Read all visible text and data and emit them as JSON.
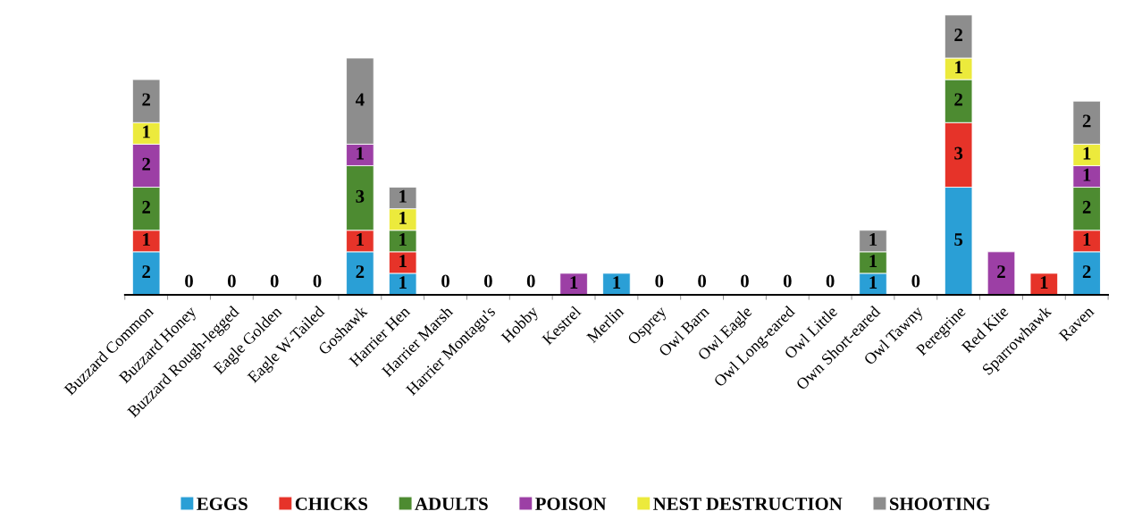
{
  "chart_data": {
    "type": "bar",
    "stacked": true,
    "data_labels": true,
    "legend": "bottom",
    "categories": [
      "Buzzard Common",
      "Buzzard Honey",
      "Buzzard Rough-legged",
      "Eagle Golden",
      "Eagle W-Tailed",
      "Goshawk",
      "Harrier Hen",
      "Harrier Marsh",
      "Harrier Montagu's",
      "Hobby",
      "Kestrel",
      "Merlin",
      "Osprey",
      "Owl Barn",
      "Owl Eagle",
      "Owl Long-eared",
      "Owl Little",
      "Own Short-eared",
      "Owl Tawny",
      "Peregrine",
      "Red Kite",
      "Sparrowhawk",
      "Raven"
    ],
    "series": [
      {
        "name": "EGGS",
        "color": "#2a9fd6",
        "values": [
          2,
          0,
          0,
          0,
          0,
          2,
          1,
          0,
          0,
          0,
          null,
          1,
          0,
          0,
          0,
          0,
          0,
          1,
          0,
          5,
          null,
          null,
          2
        ]
      },
      {
        "name": "CHICKS",
        "color": "#e63329",
        "values": [
          1,
          null,
          null,
          null,
          null,
          1,
          1,
          null,
          null,
          null,
          null,
          null,
          null,
          null,
          null,
          null,
          null,
          null,
          null,
          3,
          null,
          1,
          1
        ]
      },
      {
        "name": "ADULTS",
        "color": "#4d8b31",
        "values": [
          2,
          null,
          null,
          null,
          null,
          3,
          1,
          null,
          null,
          null,
          null,
          null,
          null,
          null,
          null,
          null,
          null,
          1,
          null,
          2,
          null,
          null,
          2
        ]
      },
      {
        "name": "POISON",
        "color": "#9c3fa5",
        "values": [
          2,
          null,
          null,
          null,
          null,
          1,
          null,
          null,
          null,
          null,
          1,
          null,
          null,
          null,
          null,
          null,
          null,
          null,
          null,
          null,
          2,
          null,
          1
        ]
      },
      {
        "name": "NEST DESTRUCTION",
        "color": "#ecea3c",
        "values": [
          1,
          null,
          null,
          null,
          null,
          null,
          1,
          null,
          null,
          null,
          null,
          null,
          null,
          null,
          null,
          null,
          null,
          null,
          null,
          1,
          null,
          null,
          1
        ]
      },
      {
        "name": "SHOOTING",
        "color": "#8d8d8d",
        "values": [
          2,
          null,
          null,
          null,
          null,
          4,
          1,
          null,
          null,
          null,
          null,
          null,
          null,
          null,
          null,
          null,
          null,
          1,
          null,
          2,
          null,
          null,
          2
        ]
      }
    ]
  }
}
